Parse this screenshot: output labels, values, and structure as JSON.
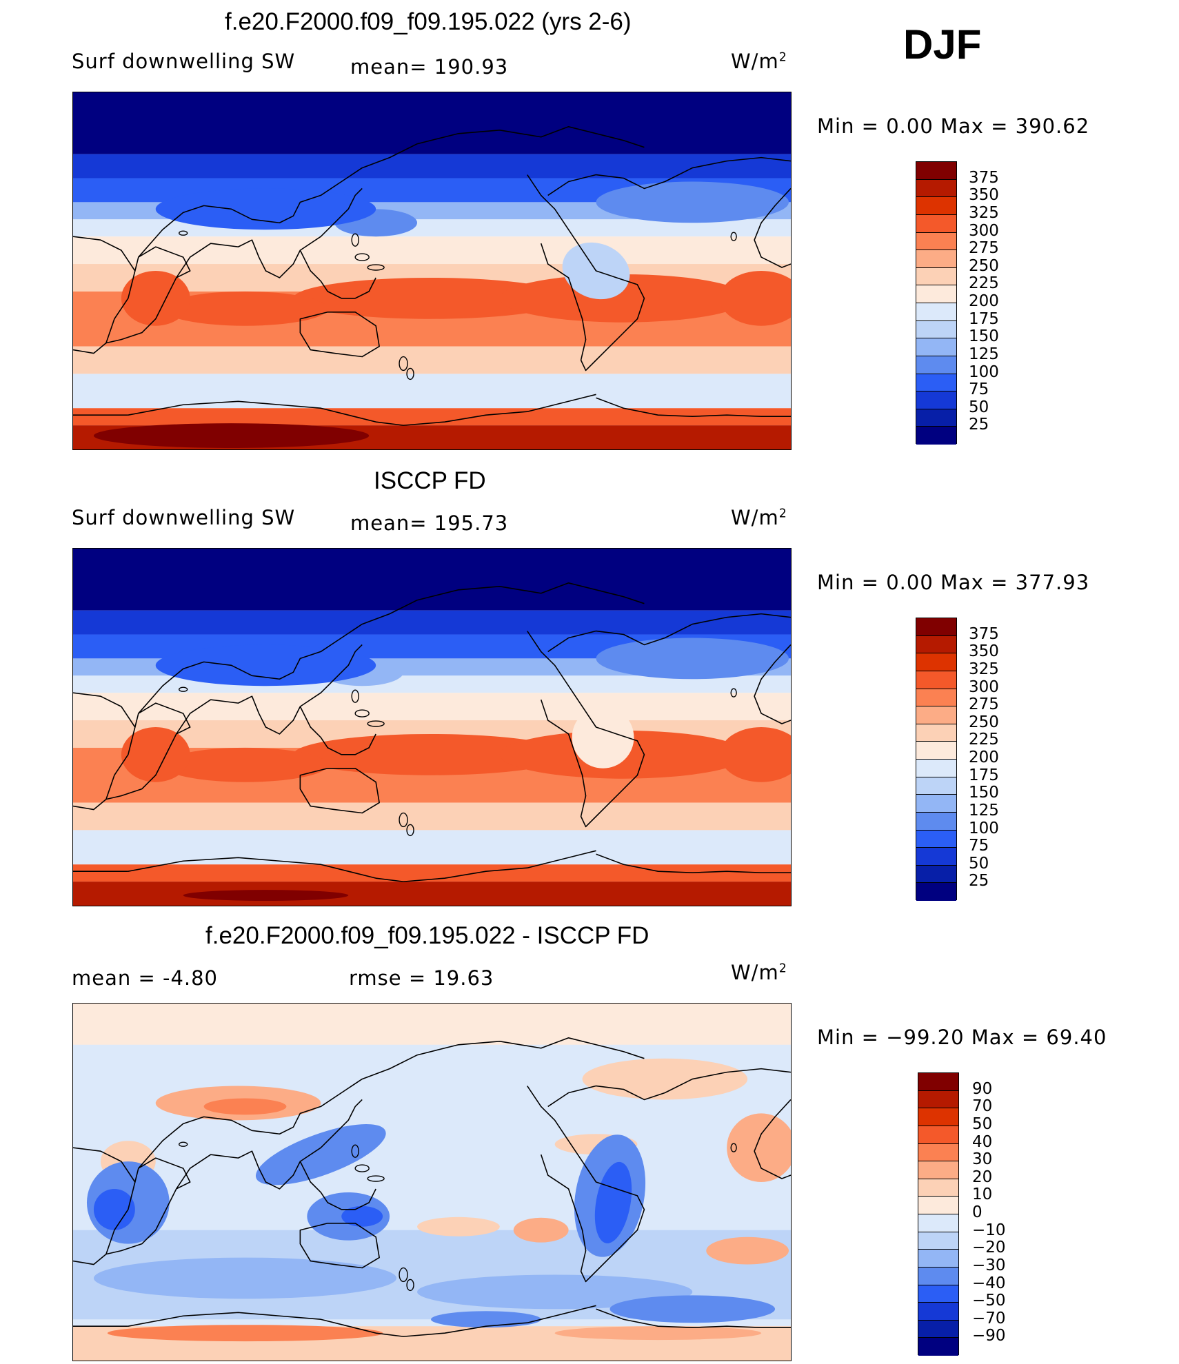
{
  "season": "DJF",
  "panels": [
    {
      "title": "f.e20.F2000.f09_f09.195.022 (yrs 2-6)",
      "left_text": "Surf downwelling SW",
      "center_text": "mean= 190.93",
      "units": "W/m",
      "units_sup": "2",
      "minmax": "Min =    0.00 Max = 390.62",
      "legend_labels": [
        "375",
        "350",
        "325",
        "300",
        "275",
        "250",
        "225",
        "200",
        "175",
        "150",
        "125",
        "100",
        "75",
        "50",
        "25"
      ],
      "legend_colors": [
        "#800000",
        "#b51a00",
        "#dd3300",
        "#f4592a",
        "#fb8152",
        "#fcac86",
        "#fcd1b6",
        "#fdeadc",
        "#dce9fa",
        "#bdd4f7",
        "#93b6f5",
        "#5e8bef",
        "#2b5ef5",
        "#1539d6",
        "#071fa8",
        "#000080"
      ],
      "kind": "model"
    },
    {
      "title": "ISCCP FD",
      "left_text": "Surf downwelling SW",
      "center_text": "mean= 195.73",
      "units": "W/m",
      "units_sup": "2",
      "minmax": "Min =    0.00 Max = 377.93",
      "legend_labels": [
        "375",
        "350",
        "325",
        "300",
        "275",
        "250",
        "225",
        "200",
        "175",
        "150",
        "125",
        "100",
        "75",
        "50",
        "25"
      ],
      "legend_colors": [
        "#800000",
        "#b51a00",
        "#dd3300",
        "#f4592a",
        "#fb8152",
        "#fcac86",
        "#fcd1b6",
        "#fdeadc",
        "#dce9fa",
        "#bdd4f7",
        "#93b6f5",
        "#5e8bef",
        "#2b5ef5",
        "#1539d6",
        "#071fa8",
        "#000080"
      ],
      "kind": "obs"
    },
    {
      "title": "f.e20.F2000.f09_f09.195.022 - ISCCP FD",
      "left_text": "mean =    -4.80",
      "center_text": "rmse =    19.63",
      "units": "W/m",
      "units_sup": "2",
      "minmax": "Min = −99.20 Max =   69.40",
      "legend_labels": [
        "90",
        "70",
        "50",
        "40",
        "30",
        "20",
        "10",
        "0",
        "−10",
        "−20",
        "−30",
        "−40",
        "−50",
        "−70",
        "−90"
      ],
      "legend_colors": [
        "#800000",
        "#b51a00",
        "#dd3300",
        "#f4592a",
        "#fb8152",
        "#fcac86",
        "#fcd1b6",
        "#fdeadc",
        "#dce9fa",
        "#bdd4f7",
        "#93b6f5",
        "#5e8bef",
        "#2b5ef5",
        "#1539d6",
        "#071fa8",
        "#000080"
      ],
      "kind": "diff"
    }
  ]
}
